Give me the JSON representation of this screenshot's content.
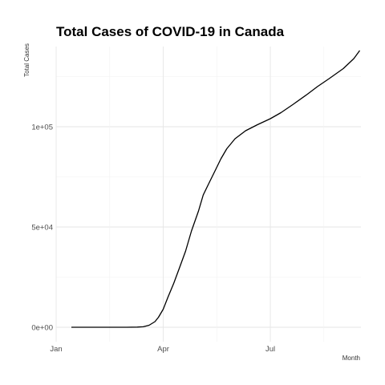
{
  "chart_data": {
    "type": "line",
    "title": "Total Cases of COVID-19 in Canada",
    "xlabel": "Month",
    "ylabel": "Total Cases",
    "xlim": [
      "2020-01-01",
      "2020-09-16"
    ],
    "ylim": [
      0,
      140000
    ],
    "x_ticks": [
      {
        "date": "2020-01-01",
        "label": "Jan"
      },
      {
        "date": "2020-04-01",
        "label": "Apr"
      },
      {
        "date": "2020-07-01",
        "label": "Jul"
      }
    ],
    "y_ticks": [
      {
        "value": 0,
        "label": "0e+00"
      },
      {
        "value": 50000,
        "label": "5e+04"
      },
      {
        "value": 100000,
        "label": "1e+05"
      }
    ],
    "grid": true,
    "colors": {
      "line": "#000000",
      "grid": "#e6e6e6"
    },
    "series": [
      {
        "x": [
          "2020-01-01",
          "2020-01-25",
          "2020-02-15",
          "2020-03-01",
          "2020-03-10",
          "2020-03-15",
          "2020-03-20",
          "2020-03-25",
          "2020-03-28",
          "2020-04-01",
          "2020-04-05",
          "2020-04-10",
          "2020-04-15",
          "2020-04-20",
          "2020-04-25",
          "2020-05-01",
          "2020-05-05",
          "2020-05-10",
          "2020-05-15",
          "2020-05-20",
          "2020-05-25",
          "2020-06-01",
          "2020-06-10",
          "2020-06-20",
          "2020-07-01",
          "2020-07-10",
          "2020-07-20",
          "2020-08-01",
          "2020-08-10",
          "2020-08-20",
          "2020-09-01",
          "2020-09-10",
          "2020-09-15"
        ],
        "y": [
          0,
          0,
          0,
          0,
          100,
          250,
          1000,
          2800,
          5000,
          9000,
          15000,
          22000,
          30000,
          38000,
          48000,
          58000,
          66000,
          72000,
          78000,
          84000,
          89000,
          94000,
          98000,
          101000,
          104000,
          107000,
          111000,
          116000,
          120000,
          124000,
          129000,
          134000,
          138000
        ]
      }
    ]
  }
}
